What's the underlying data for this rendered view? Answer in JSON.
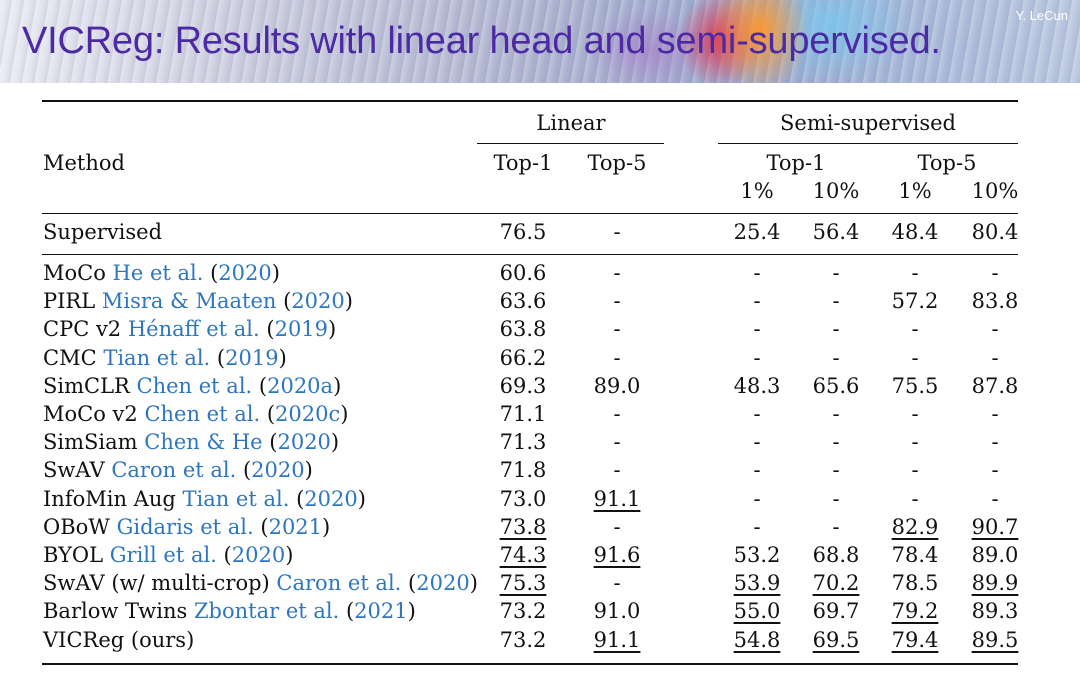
{
  "slide": {
    "title": "VICReg: Results with linear head and semi-supervised.",
    "author": "Y. LeCun"
  },
  "colors": {
    "title": "#4b2aa4",
    "citation": "#2d76c2"
  },
  "table": {
    "headers": {
      "method": "Method",
      "linear": "Linear",
      "semi": "Semi-supervised",
      "linear_top1": "Top-1",
      "linear_top5": "Top-5",
      "semi_top1": "Top-1",
      "semi_top5": "Top-5",
      "pct1_a": "1%",
      "pct10_a": "10%",
      "pct1_b": "1%",
      "pct10_b": "10%"
    },
    "supervised": {
      "name": "Supervised",
      "values": [
        "76.5",
        "-",
        "25.4",
        "56.4",
        "48.4",
        "80.4"
      ]
    },
    "rows": [
      {
        "name": "MoCo",
        "authors": "He et al.",
        "year": "2020",
        "values": [
          "60.6",
          "-",
          "-",
          "-",
          "-",
          "-"
        ],
        "underline": [
          false,
          false,
          false,
          false,
          false,
          false
        ]
      },
      {
        "name": "PIRL",
        "authors": "Misra & Maaten",
        "year": "2020",
        "values": [
          "63.6",
          "-",
          "-",
          "-",
          "57.2",
          "83.8"
        ],
        "underline": [
          false,
          false,
          false,
          false,
          false,
          false
        ]
      },
      {
        "name": "CPC v2",
        "authors": "Hénaff et al.",
        "year": "2019",
        "values": [
          "63.8",
          "-",
          "-",
          "-",
          "-",
          "-"
        ],
        "underline": [
          false,
          false,
          false,
          false,
          false,
          false
        ]
      },
      {
        "name": "CMC",
        "authors": "Tian et al.",
        "year": "2019",
        "values": [
          "66.2",
          "-",
          "-",
          "-",
          "-",
          "-"
        ],
        "underline": [
          false,
          false,
          false,
          false,
          false,
          false
        ]
      },
      {
        "name": "SimCLR",
        "authors": "Chen et al.",
        "year": "2020a",
        "values": [
          "69.3",
          "89.0",
          "48.3",
          "65.6",
          "75.5",
          "87.8"
        ],
        "underline": [
          false,
          false,
          false,
          false,
          false,
          false
        ]
      },
      {
        "name": "MoCo v2",
        "authors": "Chen et al.",
        "year": "2020c",
        "values": [
          "71.1",
          "-",
          "-",
          "-",
          "-",
          "-"
        ],
        "underline": [
          false,
          false,
          false,
          false,
          false,
          false
        ]
      },
      {
        "name": "SimSiam",
        "authors": "Chen & He",
        "year": "2020",
        "values": [
          "71.3",
          "-",
          "-",
          "-",
          "-",
          "-"
        ],
        "underline": [
          false,
          false,
          false,
          false,
          false,
          false
        ]
      },
      {
        "name": "SwAV",
        "authors": "Caron et al.",
        "year": "2020",
        "values": [
          "71.8",
          "-",
          "-",
          "-",
          "-",
          "-"
        ],
        "underline": [
          false,
          false,
          false,
          false,
          false,
          false
        ]
      },
      {
        "name": "InfoMin Aug",
        "authors": "Tian et al.",
        "year": "2020",
        "values": [
          "73.0",
          "91.1",
          "-",
          "-",
          "-",
          "-"
        ],
        "underline": [
          false,
          true,
          false,
          false,
          false,
          false
        ]
      },
      {
        "name": "OBoW",
        "authors": "Gidaris et al.",
        "year": "2021",
        "values": [
          "73.8",
          "-",
          "-",
          "-",
          "82.9",
          "90.7"
        ],
        "underline": [
          true,
          false,
          false,
          false,
          true,
          true
        ]
      },
      {
        "name": "BYOL",
        "authors": "Grill et al.",
        "year": "2020",
        "values": [
          "74.3",
          "91.6",
          "53.2",
          "68.8",
          "78.4",
          "89.0"
        ],
        "underline": [
          true,
          true,
          false,
          false,
          false,
          false
        ]
      },
      {
        "name": "SwAV (w/ multi-crop)",
        "authors": "Caron et al.",
        "year": "2020",
        "values": [
          "75.3",
          "-",
          "53.9",
          "70.2",
          "78.5",
          "89.9"
        ],
        "underline": [
          true,
          false,
          true,
          true,
          false,
          true
        ]
      },
      {
        "name": "Barlow Twins",
        "authors": "Zbontar et al.",
        "year": "2021",
        "values": [
          "73.2",
          "91.0",
          "55.0",
          "69.7",
          "79.2",
          "89.3"
        ],
        "underline": [
          false,
          false,
          true,
          false,
          true,
          false
        ]
      },
      {
        "name": "VICReg (ours)",
        "authors": "",
        "year": "",
        "values": [
          "73.2",
          "91.1",
          "54.8",
          "69.5",
          "79.4",
          "89.5"
        ],
        "underline": [
          false,
          true,
          true,
          true,
          true,
          true
        ]
      }
    ]
  }
}
